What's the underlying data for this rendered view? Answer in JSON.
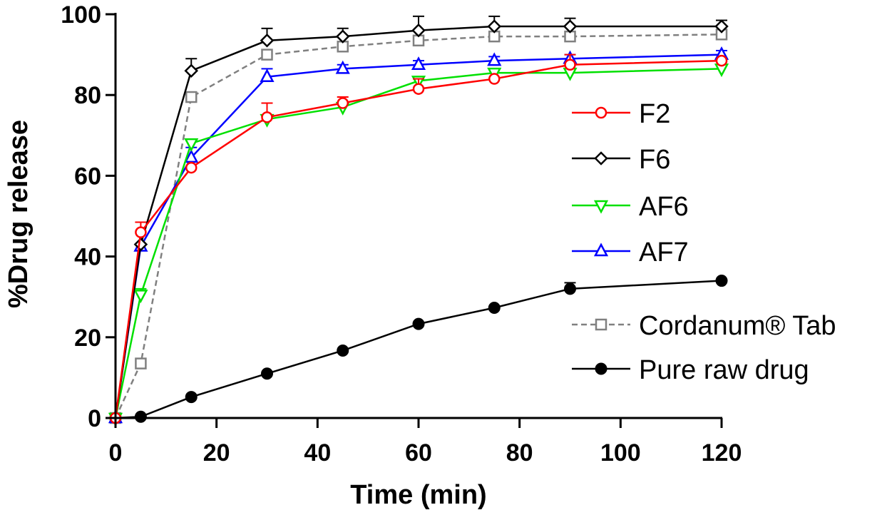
{
  "chart_data": {
    "type": "line",
    "title": "",
    "xlabel": "Time (min)",
    "ylabel": "%Drug release",
    "xlim": [
      0,
      120
    ],
    "ylim": [
      0,
      100
    ],
    "xticks": [
      0,
      20,
      40,
      60,
      80,
      100,
      120
    ],
    "yticks": [
      0,
      20,
      40,
      60,
      80,
      100
    ],
    "grid": false,
    "legend_position": "right",
    "series": [
      {
        "name": "F2",
        "color": "#ff0000",
        "marker": "circle-open",
        "dash": "solid",
        "x": [
          0,
          5,
          15,
          30,
          45,
          60,
          75,
          90,
          120
        ],
        "y": [
          0,
          46,
          62,
          74.5,
          78,
          81.5,
          84,
          87.5,
          88.5
        ],
        "err": [
          0,
          2.5,
          0,
          3.5,
          1.5,
          2.5,
          0,
          2.5,
          0
        ]
      },
      {
        "name": "F6",
        "color": "#000000",
        "marker": "diamond-open",
        "dash": "solid",
        "x": [
          0,
          5,
          15,
          30,
          45,
          60,
          75,
          90,
          120
        ],
        "y": [
          0,
          43,
          86,
          93.5,
          94.5,
          96,
          97,
          97,
          97
        ],
        "err": [
          0,
          0,
          3,
          3,
          2,
          3.5,
          2.5,
          2,
          1.5
        ]
      },
      {
        "name": "AF6",
        "color": "#00e000",
        "marker": "triangle-down-open",
        "dash": "solid",
        "x": [
          0,
          5,
          15,
          30,
          45,
          60,
          75,
          90,
          120
        ],
        "y": [
          0,
          30.5,
          68,
          74,
          77,
          83.5,
          85.5,
          85.5,
          86.5
        ],
        "err": [
          0,
          1.5,
          1,
          1,
          1,
          1,
          1,
          1,
          1
        ]
      },
      {
        "name": "AF7",
        "color": "#0000ff",
        "marker": "triangle-up-open",
        "dash": "solid",
        "x": [
          0,
          5,
          15,
          30,
          45,
          60,
          75,
          90,
          120
        ],
        "y": [
          0,
          42.5,
          64.5,
          84.5,
          86.5,
          87.5,
          88.5,
          89,
          90
        ],
        "err": [
          0,
          0,
          2.5,
          2,
          1,
          1,
          1,
          1,
          1
        ]
      },
      {
        "name": "Cordanum® Tab",
        "color": "#808080",
        "marker": "square-open",
        "dash": "dashed",
        "x": [
          0,
          5,
          15,
          30,
          45,
          60,
          75,
          90,
          120
        ],
        "y": [
          0,
          13.5,
          79.5,
          90,
          92,
          93.5,
          94.5,
          94.5,
          95
        ],
        "err": [
          0,
          0,
          0,
          1,
          1,
          1,
          1,
          1,
          1
        ]
      },
      {
        "name": "Pure raw drug",
        "color": "#000000",
        "marker": "circle-filled",
        "dash": "solid",
        "x": [
          0,
          5,
          15,
          30,
          45,
          60,
          75,
          90,
          120
        ],
        "y": [
          0,
          0.3,
          5.2,
          11,
          16.7,
          23.3,
          27.3,
          32,
          34
        ],
        "err": [
          0,
          0,
          0,
          0,
          0,
          0,
          0,
          1.5,
          0
        ]
      }
    ]
  }
}
